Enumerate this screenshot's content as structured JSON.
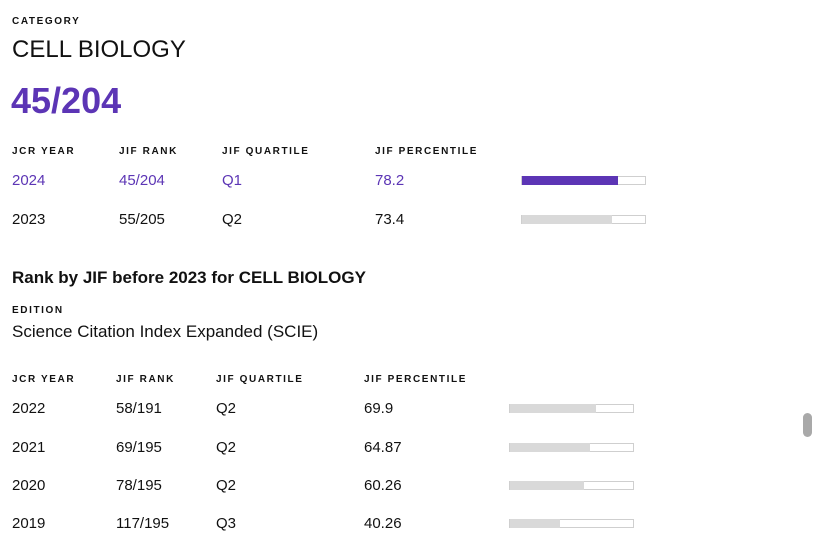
{
  "category": {
    "label": "CATEGORY",
    "name": "CELL BIOLOGY",
    "rank": "45/204"
  },
  "current_table": {
    "headers": [
      "JCR YEAR",
      "JIF RANK",
      "JIF QUARTILE",
      "JIF PERCENTILE"
    ],
    "rows": [
      {
        "year": "2024",
        "rank": "45/204",
        "quartile": "Q1",
        "percentile": "78.2",
        "percentile_value": 78.2
      },
      {
        "year": "2023",
        "rank": "55/205",
        "quartile": "Q2",
        "percentile": "73.4",
        "percentile_value": 73.4
      }
    ]
  },
  "historic": {
    "title": "Rank by JIF before 2023 for CELL BIOLOGY",
    "edition_label": "EDITION",
    "edition_name": "Science Citation Index Expanded (SCIE)",
    "headers": [
      "JCR YEAR",
      "JIF RANK",
      "JIF QUARTILE",
      "JIF PERCENTILE"
    ],
    "rows": [
      {
        "year": "2022",
        "rank": "58/191",
        "quartile": "Q2",
        "percentile": "69.9",
        "percentile_value": 69.9
      },
      {
        "year": "2021",
        "rank": "69/195",
        "quartile": "Q2",
        "percentile": "64.87",
        "percentile_value": 64.87
      },
      {
        "year": "2020",
        "rank": "78/195",
        "quartile": "Q2",
        "percentile": "60.26",
        "percentile_value": 60.26
      },
      {
        "year": "2019",
        "rank": "117/195",
        "quartile": "Q3",
        "percentile": "40.26",
        "percentile_value": 40.26
      }
    ]
  },
  "colors": {
    "accent": "#5c35b5",
    "bar_fill": "#d9d9d9",
    "bar_border": "#cfcfcf"
  }
}
